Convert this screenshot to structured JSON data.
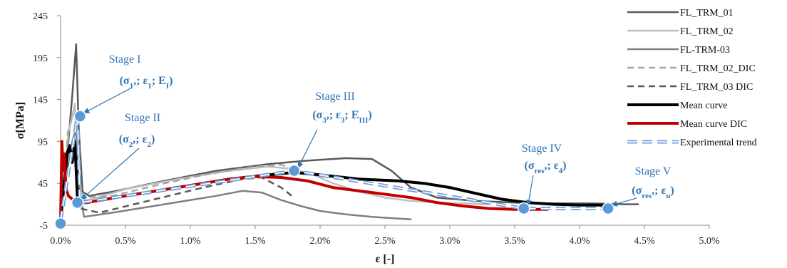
{
  "chart_data": {
    "type": "line",
    "xlabel": "ε [-]",
    "ylabel": "σ[MPa]",
    "xlim": [
      0,
      5
    ],
    "ylim": [
      -5,
      245
    ],
    "x_ticks": [
      "0.0%",
      "0.5%",
      "1.0%",
      "1.5%",
      "2.0%",
      "2.5%",
      "3.0%",
      "3.5%",
      "4.0%",
      "4.5%",
      "5.0%"
    ],
    "y_ticks": [
      "-5",
      "45",
      "95",
      "145",
      "195",
      "245"
    ],
    "legend_position": "top-right",
    "grid": false,
    "series": [
      {
        "name": "FL_TRM_01",
        "color": "#595959",
        "style": "solid",
        "width": 2.5,
        "x": [
          0,
          0.03,
          0.06,
          0.09,
          0.12,
          0.14,
          0.17,
          0.22,
          0.4,
          0.8,
          1.2,
          1.6,
          1.9,
          2.2,
          2.4,
          2.55,
          2.7,
          2.9,
          3.2,
          3.5,
          3.8,
          4.1,
          4.35,
          4.45
        ],
        "y": [
          0,
          60,
          95,
          150,
          211,
          110,
          35,
          30,
          35,
          48,
          60,
          68,
          72,
          75,
          74,
          60,
          40,
          28,
          24,
          22,
          21,
          21,
          20,
          20
        ]
      },
      {
        "name": "FL_TRM_02",
        "color": "#bfbfbf",
        "style": "solid",
        "width": 2.5,
        "x": [
          0,
          0.03,
          0.06,
          0.09,
          0.11,
          0.13,
          0.16,
          0.22,
          0.5,
          0.9,
          1.3,
          1.6,
          1.8,
          1.95,
          2.1,
          2.3,
          2.5,
          2.7,
          2.9,
          3.1,
          3.3
        ],
        "y": [
          0,
          50,
          105,
          125,
          140,
          55,
          25,
          25,
          38,
          50,
          60,
          65,
          62,
          55,
          45,
          35,
          28,
          24,
          22,
          21,
          20
        ]
      },
      {
        "name": "FL-TRM-03",
        "color": "#7f7f7f",
        "style": "solid",
        "width": 2.5,
        "x": [
          0,
          0.03,
          0.06,
          0.09,
          0.12,
          0.14,
          0.18,
          0.4,
          0.8,
          1.2,
          1.4,
          1.55,
          1.7,
          1.85,
          2.0,
          2.2,
          2.4,
          2.6,
          2.7
        ],
        "y": [
          0,
          45,
          80,
          95,
          110,
          45,
          5,
          10,
          20,
          30,
          36,
          34,
          25,
          18,
          12,
          8,
          5,
          3,
          2
        ]
      },
      {
        "name": "FL_TRM_02_DIC",
        "color": "#a6a6a6",
        "style": "dashed",
        "width": 2.5,
        "x": [
          0,
          0.03,
          0.06,
          0.09,
          0.12,
          0.14,
          0.18,
          0.4,
          0.8,
          1.2,
          1.5,
          1.7,
          1.8
        ],
        "y": [
          0,
          60,
          110,
          125,
          130,
          50,
          28,
          30,
          45,
          58,
          65,
          67,
          63
        ]
      },
      {
        "name": "FL_TRM_03 DIC",
        "color": "#595959",
        "style": "dashed",
        "width": 2.5,
        "x": [
          0,
          0.03,
          0.06,
          0.09,
          0.12,
          0.15,
          0.3,
          0.7,
          1.1,
          1.4,
          1.55,
          1.7,
          1.8
        ],
        "y": [
          0,
          40,
          70,
          85,
          95,
          15,
          10,
          25,
          40,
          50,
          52,
          40,
          28
        ]
      },
      {
        "name": "Mean curve",
        "color": "#000000",
        "style": "solid",
        "width": 4,
        "x": [
          0,
          0.03,
          0.05,
          0.07,
          0.09,
          0.11,
          0.13,
          0.15,
          0.2,
          0.5,
          0.9,
          1.3,
          1.6,
          1.8,
          2.0,
          2.3,
          2.6,
          2.8,
          3.0,
          3.2,
          3.4,
          3.6,
          3.8,
          4.0,
          4.2
        ],
        "y": [
          0,
          50,
          80,
          90,
          70,
          95,
          25,
          22,
          22,
          30,
          40,
          50,
          55,
          58,
          55,
          50,
          48,
          45,
          40,
          33,
          26,
          22,
          20,
          19,
          19
        ]
      },
      {
        "name": "Mean curve DIC",
        "color": "#c00000",
        "style": "solid",
        "width": 4,
        "x": [
          0,
          0.01,
          0.02,
          0.03,
          0.04,
          0.06,
          0.1,
          0.14,
          0.2,
          0.5,
          0.9,
          1.3,
          1.5,
          1.7,
          1.9,
          2.1,
          2.4,
          2.7,
          2.9,
          3.1,
          3.3,
          3.5,
          3.65,
          3.75
        ],
        "y": [
          0,
          95,
          60,
          80,
          40,
          30,
          25,
          22,
          22,
          30,
          40,
          50,
          53,
          52,
          48,
          40,
          34,
          28,
          22,
          18,
          15,
          14,
          14,
          14
        ]
      },
      {
        "name": "Experimental trend",
        "color": "#6f9fd8",
        "style": "double-dashed",
        "width": 2,
        "x": [
          0,
          0.13,
          0.15,
          1.8,
          3.57,
          4.22
        ],
        "y": [
          0,
          125,
          22,
          60,
          15,
          15
        ]
      }
    ],
    "markers": [
      {
        "x": 0.0,
        "y": -3
      },
      {
        "x": 0.15,
        "y": 125
      },
      {
        "x": 0.13,
        "y": 22
      },
      {
        "x": 1.8,
        "y": 60
      },
      {
        "x": 3.57,
        "y": 15
      },
      {
        "x": 4.22,
        "y": 15
      }
    ],
    "annotations": [
      {
        "name": "Stage I",
        "tuple_parts": [
          [
            "(σ",
            ""
          ],
          [
            "1",
            "sub"
          ],
          [
            ",; ε",
            ""
          ],
          [
            "1",
            "sub"
          ],
          [
            "; E",
            ""
          ],
          [
            "I",
            "sub"
          ],
          [
            ")",
            ""
          ]
        ],
        "target_index": 1
      },
      {
        "name": "Stage II",
        "tuple_parts": [
          [
            "(σ",
            ""
          ],
          [
            "2",
            "sub"
          ],
          [
            ",; ε",
            ""
          ],
          [
            "2",
            "sub"
          ],
          [
            ")",
            ""
          ]
        ],
        "target_index": 2
      },
      {
        "name": "Stage III",
        "tuple_parts": [
          [
            "(σ",
            ""
          ],
          [
            "3",
            "sub"
          ],
          [
            ",; ε",
            ""
          ],
          [
            "3",
            "sub"
          ],
          [
            "; E",
            ""
          ],
          [
            "III",
            "sub"
          ],
          [
            ")",
            ""
          ]
        ],
        "target_index": 3
      },
      {
        "name": "Stage IV",
        "tuple_parts": [
          [
            "(σ",
            ""
          ],
          [
            "res",
            "sub"
          ],
          [
            ",; ε",
            ""
          ],
          [
            "4",
            "sub"
          ],
          [
            ")",
            ""
          ]
        ],
        "target_index": 4
      },
      {
        "name": "Stage V",
        "tuple_parts": [
          [
            "(σ",
            ""
          ],
          [
            "res",
            "sub"
          ],
          [
            ",; ε",
            ""
          ],
          [
            "u",
            "sub"
          ],
          [
            ")",
            ""
          ]
        ],
        "target_index": 5
      }
    ]
  }
}
